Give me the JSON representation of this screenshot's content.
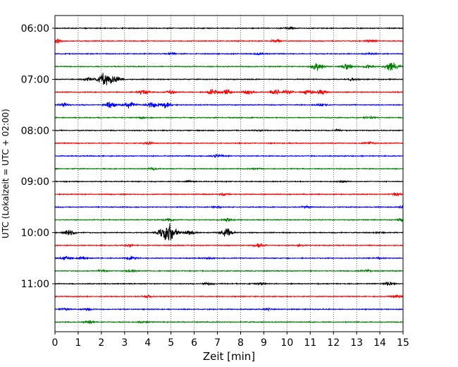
{
  "chart_data": {
    "type": "line",
    "title": "",
    "xlabel": "Zeit  [min]",
    "ylabel": "UTC (Lokalzeit = UTC + 02:00)",
    "xlim": [
      0,
      15
    ],
    "x_ticks": [
      "0",
      "1",
      "2",
      "3",
      "4",
      "5",
      "6",
      "7",
      "8",
      "9",
      "10",
      "11",
      "12",
      "13",
      "14",
      "15"
    ],
    "y_ticks": [
      "06:00",
      "07:00",
      "08:00",
      "09:00",
      "10:00",
      "11:00"
    ],
    "grid": "vertical dotted",
    "legend": "none",
    "trace_colors": [
      "#000000",
      "#ff0000",
      "#0000ff",
      "#008000"
    ],
    "series": [
      {
        "start": "06:00",
        "color": "black",
        "events": [
          [
            10.1,
            0.8
          ]
        ]
      },
      {
        "start": "06:15",
        "color": "red",
        "events": [
          [
            0.05,
            1.6
          ],
          [
            9.5,
            0.9
          ],
          [
            13.6,
            1.0
          ]
        ]
      },
      {
        "start": "06:30",
        "color": "blue",
        "events": [
          [
            5.0,
            0.6
          ],
          [
            8.8,
            0.7
          ],
          [
            13.6,
            0.6
          ]
        ]
      },
      {
        "start": "06:45",
        "color": "green",
        "events": [
          [
            11.3,
            2.6
          ],
          [
            12.6,
            2.0
          ],
          [
            14.5,
            3.0
          ],
          [
            13.5,
            0.8
          ]
        ]
      },
      {
        "start": "07:00",
        "color": "black",
        "events": [
          [
            2.1,
            3.8
          ],
          [
            2.6,
            2.4
          ],
          [
            1.4,
            1.0
          ],
          [
            12.8,
            0.8
          ]
        ]
      },
      {
        "start": "07:15",
        "color": "red",
        "events": [
          [
            3.8,
            1.6
          ],
          [
            5.0,
            1.2
          ],
          [
            6.8,
            1.8
          ],
          [
            7.4,
            1.6
          ],
          [
            8.3,
            1.5
          ],
          [
            9.5,
            1.6
          ],
          [
            10.0,
            1.3
          ],
          [
            10.9,
            1.4
          ],
          [
            11.5,
            1.6
          ]
        ]
      },
      {
        "start": "07:30",
        "color": "blue",
        "events": [
          [
            0.4,
            1.2
          ],
          [
            2.4,
            2.1
          ],
          [
            3.2,
            2.3
          ],
          [
            4.2,
            2.2
          ],
          [
            4.8,
            2.0
          ],
          [
            11.5,
            0.8
          ]
        ]
      },
      {
        "start": "07:45",
        "color": "green",
        "events": [
          [
            3.8,
            0.5
          ],
          [
            13.6,
            0.7
          ]
        ]
      },
      {
        "start": "08:00",
        "color": "black",
        "events": [
          [
            8.9,
            0.5
          ],
          [
            12.2,
            0.4
          ]
        ]
      },
      {
        "start": "08:15",
        "color": "red",
        "events": [
          [
            4.0,
            0.9
          ],
          [
            13.5,
            0.6
          ]
        ]
      },
      {
        "start": "08:30",
        "color": "blue",
        "events": [
          [
            7.0,
            1.1
          ]
        ]
      },
      {
        "start": "08:45",
        "color": "green",
        "events": [
          [
            4.2,
            0.6
          ],
          [
            8.6,
            0.4
          ]
        ]
      },
      {
        "start": "09:00",
        "color": "black",
        "events": [
          [
            5.8,
            0.6
          ],
          [
            12.4,
            0.8
          ]
        ]
      },
      {
        "start": "09:15",
        "color": "red",
        "events": [
          [
            7.3,
            0.8
          ],
          [
            14.7,
            1.1
          ]
        ]
      },
      {
        "start": "09:30",
        "color": "blue",
        "events": [
          [
            7.0,
            0.6
          ],
          [
            10.8,
            0.7
          ],
          [
            15.0,
            0.9
          ]
        ]
      },
      {
        "start": "09:45",
        "color": "green",
        "events": [
          [
            4.9,
            0.7
          ],
          [
            7.4,
            1.0
          ],
          [
            15.0,
            1.1
          ]
        ]
      },
      {
        "start": "10:00",
        "color": "black",
        "events": [
          [
            0.6,
            1.8
          ],
          [
            4.9,
            5.8
          ],
          [
            5.8,
            1.5
          ],
          [
            7.4,
            2.6
          ],
          [
            14.0,
            0.5
          ]
        ]
      },
      {
        "start": "10:15",
        "color": "red",
        "events": [
          [
            3.2,
            0.6
          ],
          [
            8.8,
            1.1
          ],
          [
            10.5,
            0.5
          ]
        ]
      },
      {
        "start": "10:30",
        "color": "blue",
        "events": [
          [
            0.5,
            1.3
          ],
          [
            1.2,
            1.0
          ],
          [
            3.3,
            1.1
          ],
          [
            6.6,
            0.5
          ],
          [
            14.0,
            0.6
          ]
        ]
      },
      {
        "start": "10:45",
        "color": "green",
        "events": [
          [
            2.0,
            0.6
          ],
          [
            3.3,
            0.8
          ],
          [
            13.4,
            0.7
          ]
        ]
      },
      {
        "start": "11:00",
        "color": "black",
        "events": [
          [
            6.6,
            0.8
          ],
          [
            8.8,
            0.9
          ],
          [
            14.4,
            1.0
          ]
        ]
      },
      {
        "start": "11:15",
        "color": "red",
        "events": [
          [
            4.0,
            0.8
          ],
          [
            14.7,
            0.9
          ]
        ]
      },
      {
        "start": "11:30",
        "color": "blue",
        "events": [
          [
            0.4,
            0.9
          ],
          [
            1.4,
            0.9
          ],
          [
            9.2,
            0.7
          ]
        ]
      },
      {
        "start": "11:45",
        "color": "green",
        "events": [
          [
            1.5,
            1.0
          ],
          [
            3.8,
            0.7
          ]
        ]
      }
    ]
  }
}
